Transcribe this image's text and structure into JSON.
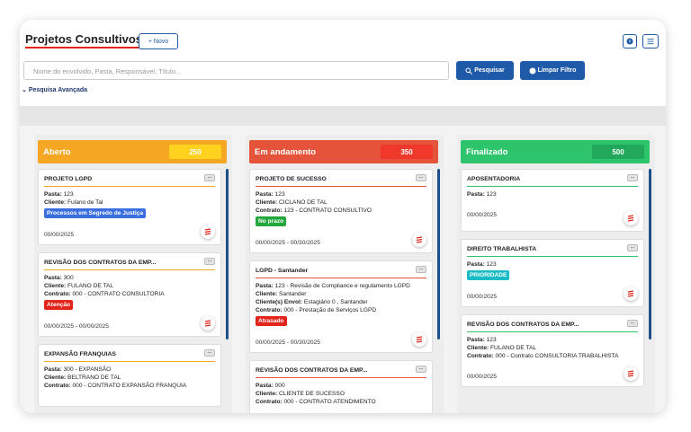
{
  "header": {
    "title": "Projetos Consultivos",
    "new_button": "+ Novo",
    "search_placeholder": "Nome do envolvido, Pasta, Responsável, Título...",
    "search_button": "Pesquisar",
    "clear_button": "Limpar Filtro",
    "advanced_search": "Pesquisa Avançada"
  },
  "menu_label": "...",
  "columns": [
    {
      "title": "Aberto",
      "count": 250,
      "color": "#f5a623",
      "badge_color": "#ffd21f",
      "line_color": "#f5a623",
      "cards": [
        {
          "title": "PROJETO LGPD",
          "fields": [
            {
              "label": "Pasta:",
              "value": "123"
            },
            {
              "label": "Cliente:",
              "value": "Fulano de Tal"
            }
          ],
          "tag": {
            "text": "Processos em Segredo de Justiça",
            "color": "#3b6fe0"
          },
          "date": "00/00/2025"
        },
        {
          "title": "REVISÃO DOS CONTRATOS DA EMP...",
          "fields": [
            {
              "label": "Pasta:",
              "value": "300"
            },
            {
              "label": "Cliente:",
              "value": "FULANO DE TAL"
            },
            {
              "label": "Contrato:",
              "value": "000 - CONTRATO CONSULTORIA"
            }
          ],
          "tag": {
            "text": "Atenção",
            "color": "#e3241b"
          },
          "date": "00/00/2025 - 00/00/2025"
        },
        {
          "title": "EXPANSÃO FRANQUIAS",
          "fields": [
            {
              "label": "Pasta:",
              "value": "300 - EXPANSÃO"
            },
            {
              "label": "Cliente:",
              "value": "BELTRANO DE TAL"
            },
            {
              "label": "Contrato:",
              "value": "000 - CONTRATO EXPANSÃO FRANQUIA"
            }
          ]
        }
      ]
    },
    {
      "title": "Em andamento",
      "count": 350,
      "color": "#e5533b",
      "badge_color": "#f0392a",
      "line_color": "#e5533b",
      "cards": [
        {
          "title": "PROJETO DE SUCESSO",
          "fields": [
            {
              "label": "Pasta:",
              "value": "123"
            },
            {
              "label": "Cliente:",
              "value": "CICLANO DE TAL"
            },
            {
              "label": "Contrato:",
              "value": "123 - CONTRATO CONSULTIVO"
            }
          ],
          "tag": {
            "text": "No prazo",
            "color": "#22a83a"
          },
          "date": "00/00/2025 - 00/30/2025"
        },
        {
          "title": "LGPD - Santander",
          "fields": [
            {
              "label": "Pasta:",
              "value": "123 - Revisão de Compliance e regulamento LGPD"
            },
            {
              "label": "Cliente:",
              "value": "Santander"
            },
            {
              "label": "Cliente(s) Envol:",
              "value": "Estagiário 0 , Santander"
            },
            {
              "label": "Contrato:",
              "value": "000 - Prestação de Serviços LGPD"
            }
          ],
          "tag": {
            "text": "Atrasado",
            "color": "#e3241b"
          },
          "date": "00/00/2025 - 00/30/2025"
        },
        {
          "title": "REVISÃO DOS CONTRATOS DA EMP...",
          "fields": [
            {
              "label": "Pasta:",
              "value": "000"
            },
            {
              "label": "Cliente:",
              "value": "CLIENTE DE SUCESSO"
            },
            {
              "label": "Contrato:",
              "value": "000 - CONTRATO ATENDIMENTO"
            }
          ]
        }
      ]
    },
    {
      "title": "Finalizado",
      "count": 500,
      "color": "#2ec46c",
      "badge_color": "#22a85a",
      "line_color": "#2ec46c",
      "cards": [
        {
          "title": "APOSENTADORIA",
          "fields": [
            {
              "label": "Pasta:",
              "value": "123"
            }
          ],
          "date": "00/00/2025"
        },
        {
          "title": "DIREITO TRABALHISTA",
          "fields": [
            {
              "label": "Pasta:",
              "value": "123"
            }
          ],
          "tag": {
            "text": "PRIORIDADE",
            "color": "#19bcc6"
          },
          "date": "00/00/2025"
        },
        {
          "title": "REVISÃO DOS CONTRATOS DA EMP...",
          "fields": [
            {
              "label": "Pasta:",
              "value": "123"
            },
            {
              "label": "Cliente:",
              "value": "FULANO DE TAL"
            },
            {
              "label": "Contrato:",
              "value": "000 - Contrato CONSULTORIA TRABALHISTA"
            }
          ],
          "date": "00/00/2025"
        }
      ]
    }
  ]
}
